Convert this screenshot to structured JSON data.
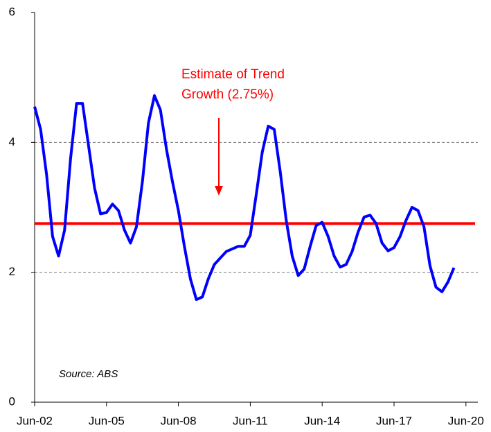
{
  "chart_data": {
    "type": "line",
    "categories": [
      "Jun-02",
      null,
      null,
      null,
      null,
      null,
      null,
      null,
      null,
      null,
      null,
      null,
      "Jun-05",
      null,
      null,
      null,
      null,
      null,
      null,
      null,
      null,
      null,
      null,
      null,
      "Jun-08",
      null,
      null,
      null,
      null,
      null,
      null,
      null,
      null,
      null,
      null,
      null,
      "Jun-11",
      null,
      null,
      null,
      null,
      null,
      null,
      null,
      null,
      null,
      null,
      null,
      "Jun-14",
      null,
      null,
      null,
      null,
      null,
      null,
      null,
      null,
      null,
      null,
      null,
      "Jun-17",
      null,
      null,
      null,
      null,
      null,
      null,
      null,
      null,
      null,
      null,
      null,
      "Jun-20"
    ],
    "series": [
      {
        "color": "#0000ff",
        "values": [
          4.55,
          4.2,
          3.5,
          2.55,
          2.25,
          2.65,
          3.75,
          4.6,
          4.6,
          3.95,
          3.3,
          2.9,
          2.92,
          3.05,
          2.95,
          2.65,
          2.45,
          2.7,
          3.4,
          4.3,
          4.72,
          4.5,
          3.9,
          3.4,
          2.95,
          2.4,
          1.9,
          1.58,
          1.62,
          1.9,
          2.12,
          2.22,
          2.32,
          2.36,
          2.4,
          2.4,
          2.57,
          3.2,
          3.85,
          4.25,
          4.2,
          3.55,
          2.8,
          2.25,
          1.95,
          2.05,
          2.4,
          2.72,
          2.77,
          2.55,
          2.25,
          2.08,
          2.12,
          2.32,
          2.62,
          2.85,
          2.88,
          2.75,
          2.45,
          2.33,
          2.38,
          2.55,
          2.8,
          3.0,
          2.95,
          2.7,
          2.1,
          1.77,
          1.7,
          1.85,
          2.07,
          null,
          null
        ]
      }
    ],
    "reference_line": {
      "value": 2.75,
      "color": "#ff0000"
    },
    "annotation": [
      "Estimate of Trend",
      "Growth (2.75%)"
    ],
    "source": "Source: ABS",
    "ylim": [
      0,
      6
    ],
    "yticks": [
      0,
      2,
      4,
      6
    ],
    "grid": true
  }
}
